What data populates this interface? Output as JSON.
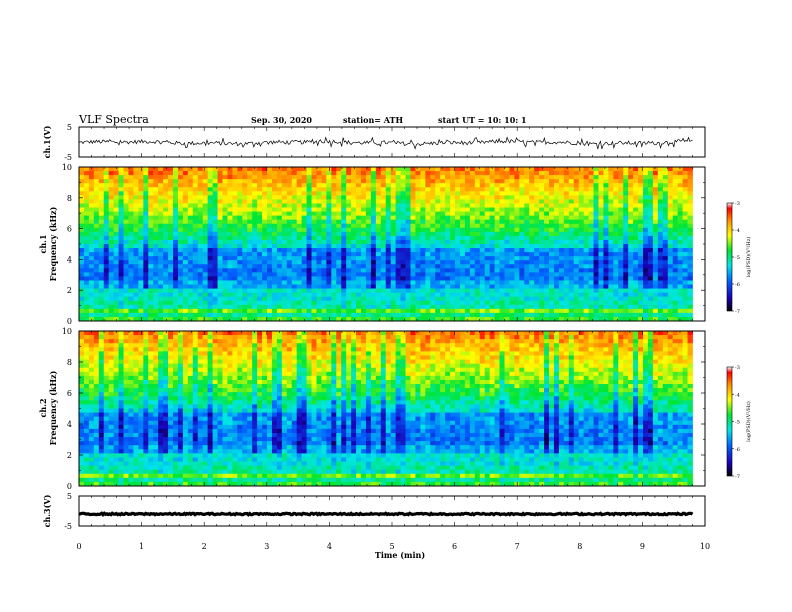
{
  "header": {
    "title": "VLF Spectra",
    "date": "Sep. 30, 2020",
    "station": "station= ATH",
    "start_ut": "start  UT =   10: 10: 1"
  },
  "axes_text": {
    "ch1_volt_label": "ch.1(V)",
    "ch2_volt_label": "ch.3(V)",
    "spec1_label_line1": "ch.1",
    "spec1_label_line2": "Frequency  (kHz)",
    "spec2_label_line1": "ch.2",
    "spec2_label_line2": "Frequency  (kHz)",
    "colorbar_label": "log(PSD)(V²/Hz)",
    "x_label": "Time  (min)"
  },
  "chart_data": [
    {
      "type": "line",
      "panel": "ch.1 waveform",
      "ylabel": "ch.1(V)",
      "ylim": [
        -5,
        5
      ],
      "yticks": [
        "5",
        "-5"
      ],
      "xlim": [
        0,
        10
      ],
      "series": [
        {
          "y_mean": 0,
          "y_range": [
            -2.5,
            1.5
          ]
        }
      ]
    },
    {
      "type": "heatmap",
      "panel": "ch.1 spectrogram",
      "ylabel": "Frequency  (kHz)",
      "ylim": [
        0,
        10
      ],
      "yticks": [
        "0",
        "2",
        "4",
        "6",
        "8",
        "10"
      ],
      "xlim": [
        0,
        9.8
      ],
      "colorbar": {
        "label": "log(PSD)(V²/Hz)",
        "range": [
          -7,
          -3
        ],
        "ticks": [
          "-3",
          "-4",
          "-5",
          "-6",
          "-7"
        ]
      }
    },
    {
      "type": "heatmap",
      "panel": "ch.2 spectrogram",
      "ylabel": "Frequency  (kHz)",
      "ylim": [
        0,
        10
      ],
      "yticks": [
        "0",
        "2",
        "4",
        "6",
        "8",
        "10"
      ],
      "xlim": [
        0,
        9.8
      ],
      "colorbar": {
        "label": "log(PSD)(V²/Hz)",
        "range": [
          -7,
          -3
        ],
        "ticks": [
          "-3",
          "-4",
          "-5",
          "-6",
          "-7"
        ]
      }
    },
    {
      "type": "line",
      "panel": "ch.3 waveform",
      "ylabel": "ch.3(V)",
      "ylim": [
        -5,
        5
      ],
      "yticks": [
        "5",
        "-5"
      ],
      "xlim": [
        0,
        10
      ],
      "series": [
        {
          "y_mean": -1,
          "y_range": [
            -1.3,
            -0.7
          ]
        }
      ]
    }
  ],
  "x_axis": {
    "label": "Time  (min)",
    "range": [
      0,
      10
    ],
    "ticks": [
      "0",
      "1",
      "2",
      "3",
      "4",
      "5",
      "6",
      "7",
      "8",
      "9",
      "10"
    ]
  }
}
